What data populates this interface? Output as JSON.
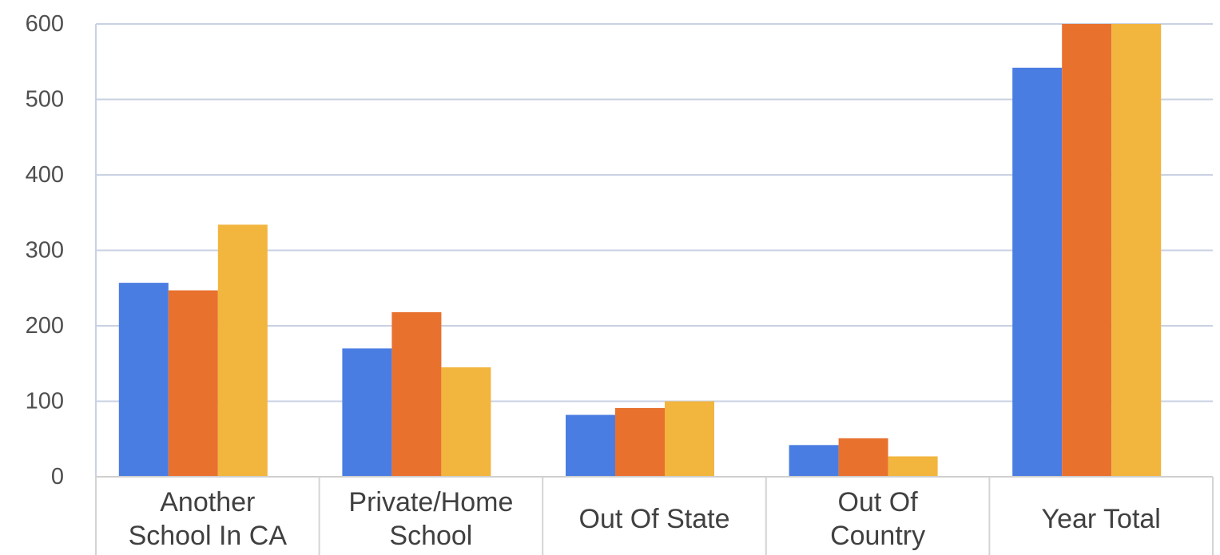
{
  "chart_data": {
    "type": "bar",
    "title": "",
    "xlabel": "",
    "ylabel": "",
    "categories": [
      [
        "Another",
        "School In CA"
      ],
      [
        "Private/Home",
        "School"
      ],
      [
        "Out Of State"
      ],
      [
        "Out Of",
        "Country"
      ],
      [
        "Year Total"
      ]
    ],
    "series": [
      {
        "color": "#4a7de2",
        "values": [
          257,
          170,
          82,
          42,
          542
        ]
      },
      {
        "color": "#e8712e",
        "values": [
          247,
          218,
          91,
          51,
          600
        ]
      },
      {
        "color": "#f2b53e",
        "values": [
          334,
          145,
          100,
          27,
          600
        ]
      }
    ],
    "ylim": [
      0,
      600
    ],
    "yticks": [
      0,
      100,
      200,
      300,
      400,
      500,
      600
    ],
    "grid": true,
    "legend": "none"
  }
}
